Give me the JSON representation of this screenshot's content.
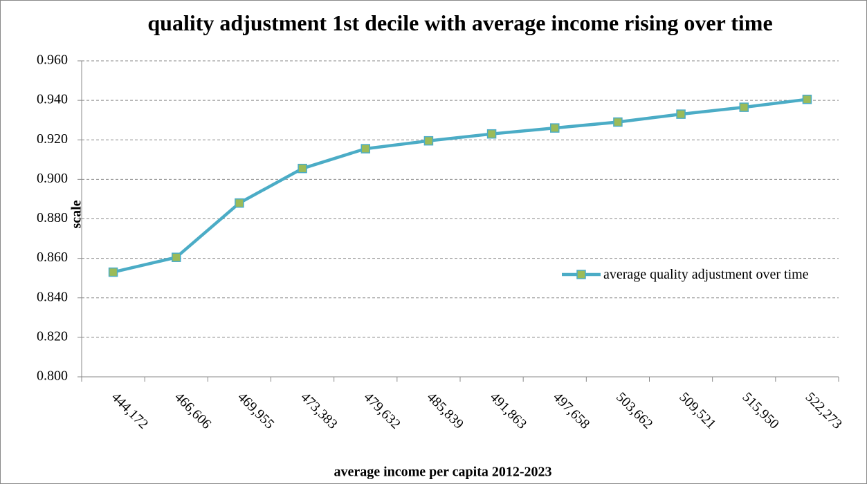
{
  "chart_data": {
    "type": "line",
    "title": "quality adjustment 1st decile with average income rising over time",
    "x_label": "average income per capita 2012-2023",
    "y_label": "scale",
    "categories": [
      "444,172",
      "466,606",
      "469,955",
      "473,383",
      "479,632",
      "485,839",
      "491,863",
      "497,658",
      "503,662",
      "509,521",
      "515,950",
      "522,273"
    ],
    "series": [
      {
        "name": "average quality adjustment over time",
        "color": "#4bacc6",
        "marker_color": "#9bbb59",
        "values": [
          0.853,
          0.8605,
          0.888,
          0.9055,
          0.9155,
          0.9195,
          0.923,
          0.926,
          0.929,
          0.933,
          0.9365,
          0.9405
        ]
      }
    ],
    "ylim": [
      0.8,
      0.96
    ],
    "yticks": [
      {
        "value": 0.8,
        "label": "0.800"
      },
      {
        "value": 0.82,
        "label": "0.820"
      },
      {
        "value": 0.84,
        "label": "0.840"
      },
      {
        "value": 0.86,
        "label": "0.860"
      },
      {
        "value": 0.88,
        "label": "0.880"
      },
      {
        "value": 0.9,
        "label": "0.900"
      },
      {
        "value": 0.92,
        "label": "0.920"
      },
      {
        "value": 0.94,
        "label": "0.940"
      },
      {
        "value": 0.96,
        "label": "0.960"
      }
    ],
    "grid": true
  }
}
